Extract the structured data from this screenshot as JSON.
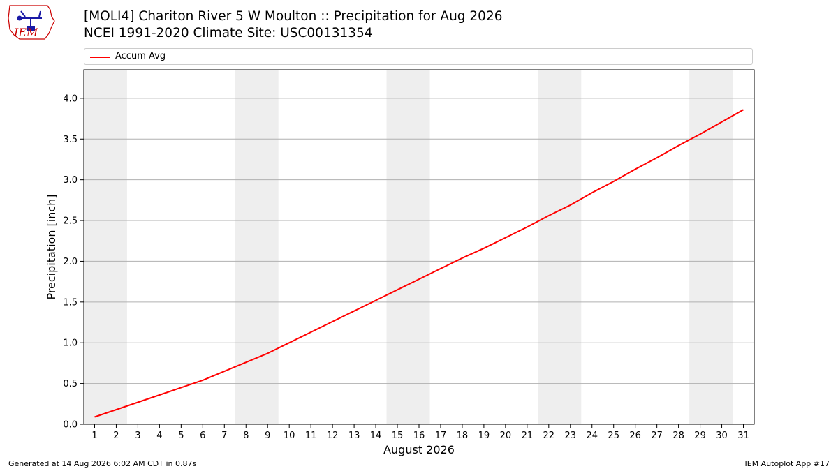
{
  "header": {
    "title_line1": "[MOLI4] Chariton River 5 W Moulton :: Precipitation for Aug 2026",
    "title_line2": "NCEI 1991-2020 Climate Site: USC00131354"
  },
  "logo": {
    "text": "IEM"
  },
  "footer": {
    "left": "Generated at 14 Aug 2026 6:02 AM CDT in 0.87s",
    "right": "IEM Autoplot App #17"
  },
  "colors": {
    "line": "#ff0000",
    "weekend_band": "#eeeeee",
    "grid": "#b0b0b0"
  },
  "chart_data": {
    "type": "line",
    "xlabel": "August 2026",
    "ylabel": "Precipitation [inch]",
    "xlim": [
      0.5,
      31.5
    ],
    "ylim": [
      0,
      4.35
    ],
    "yticks": [
      0.0,
      0.5,
      1.0,
      1.5,
      2.0,
      2.5,
      3.0,
      3.5,
      4.0
    ],
    "xticks": [
      1,
      2,
      3,
      4,
      5,
      6,
      7,
      8,
      9,
      10,
      11,
      12,
      13,
      14,
      15,
      16,
      17,
      18,
      19,
      20,
      21,
      22,
      23,
      24,
      25,
      26,
      27,
      28,
      29,
      30,
      31
    ],
    "grid": "horizontal",
    "legend": "top",
    "weekend_bands": [
      [
        1,
        2
      ],
      [
        8,
        9
      ],
      [
        15,
        16
      ],
      [
        22,
        23
      ],
      [
        29,
        30
      ]
    ],
    "series": [
      {
        "name": "Accum Avg",
        "x": [
          1,
          2,
          3,
          4,
          5,
          6,
          7,
          8,
          9,
          10,
          11,
          12,
          13,
          14,
          15,
          16,
          17,
          18,
          19,
          20,
          21,
          22,
          23,
          24,
          25,
          26,
          27,
          28,
          29,
          30,
          31
        ],
        "values": [
          0.09,
          0.18,
          0.27,
          0.36,
          0.45,
          0.54,
          0.65,
          0.76,
          0.87,
          1.0,
          1.13,
          1.26,
          1.39,
          1.52,
          1.65,
          1.78,
          1.91,
          2.04,
          2.16,
          2.29,
          2.42,
          2.56,
          2.69,
          2.84,
          2.98,
          3.13,
          3.27,
          3.42,
          3.56,
          3.71,
          3.86
        ]
      }
    ]
  }
}
